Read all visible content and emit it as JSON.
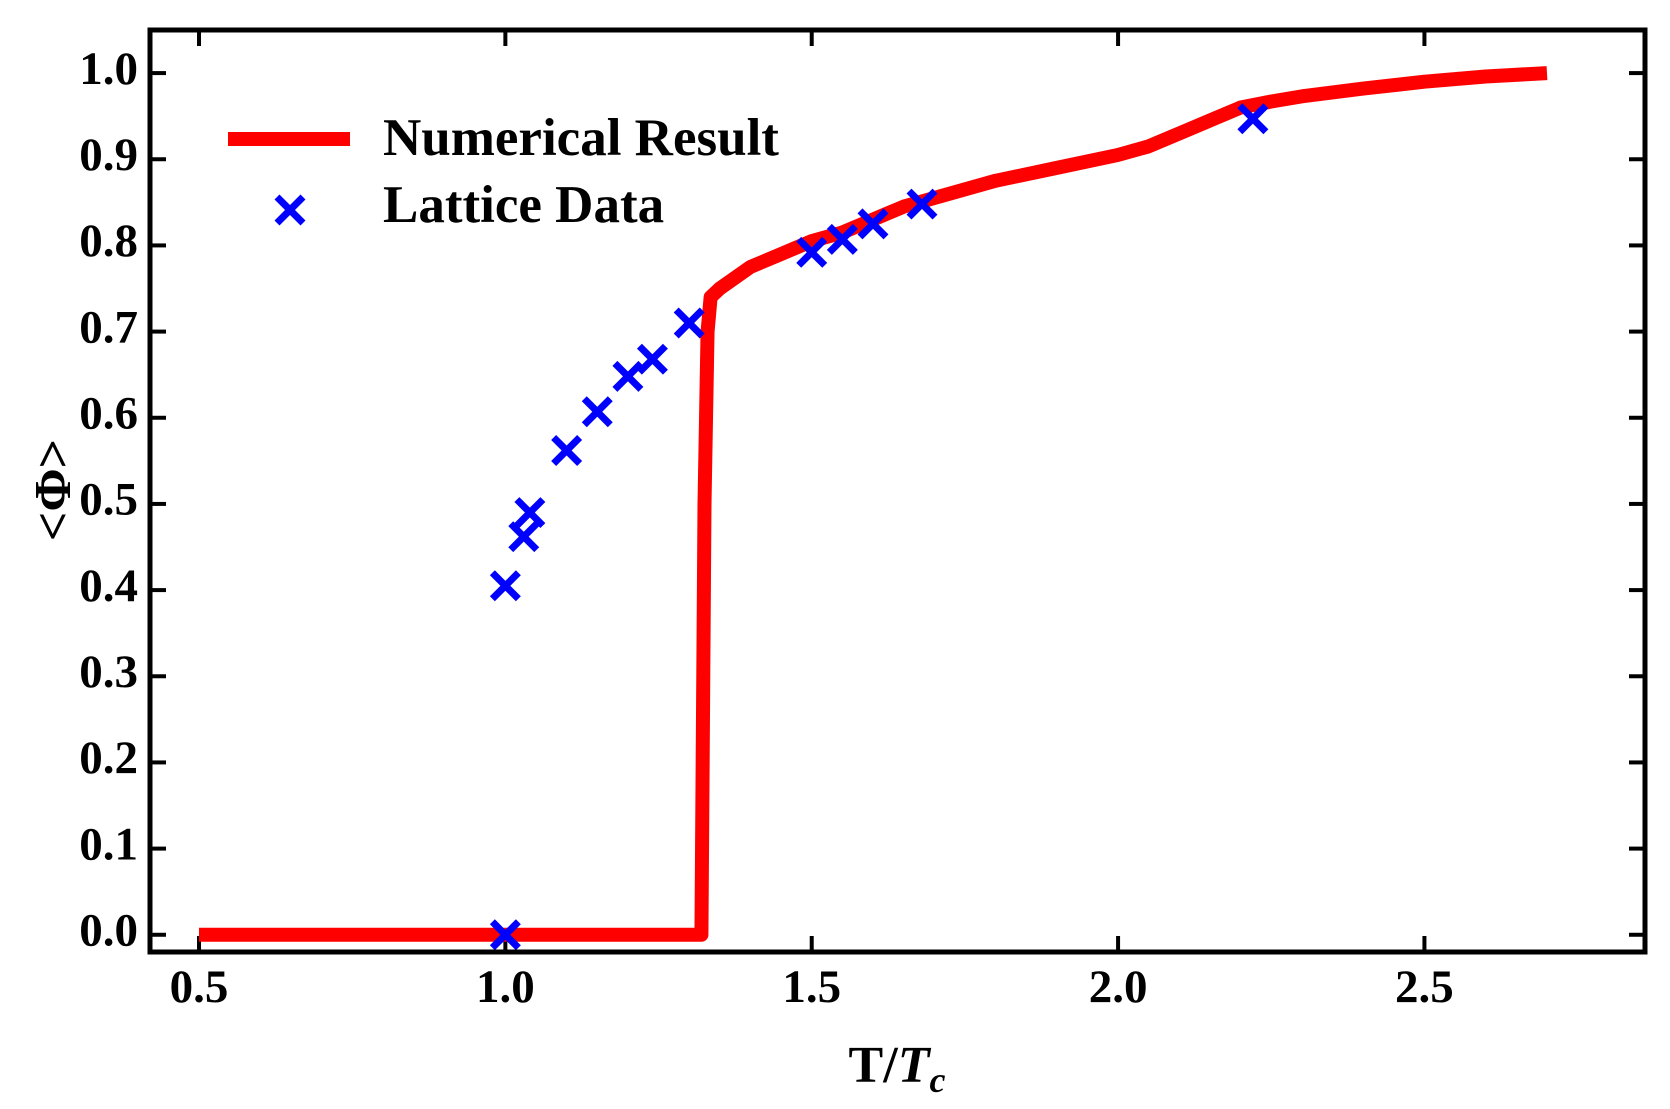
{
  "chart_data": {
    "type": "line",
    "title": "",
    "xlabel": "T/",
    "xlabel_var": "T",
    "xlabel_sub": "c",
    "ylabel": "<Φ>",
    "xlim": [
      0.42,
      2.86
    ],
    "ylim": [
      -0.02,
      1.05
    ],
    "xticks": [
      0.5,
      1.0,
      1.5,
      2.0,
      2.5
    ],
    "xtick_labels": [
      "0.5",
      "1.0",
      "1.5",
      "2.0",
      "2.5"
    ],
    "yticks": [
      0.0,
      0.1,
      0.2,
      0.3,
      0.4,
      0.5,
      0.6,
      0.7,
      0.8,
      0.9,
      1.0
    ],
    "ytick_labels": [
      "0.0",
      "0.1",
      "0.2",
      "0.3",
      "0.4",
      "0.5",
      "0.6",
      "0.7",
      "0.8",
      "0.9",
      "1.0"
    ],
    "legend_position": "top-left",
    "series": [
      {
        "name": "Numerical Result",
        "kind": "line",
        "color": "#ff0000",
        "x": [
          0.5,
          1.32,
          1.325,
          1.33,
          1.335,
          1.35,
          1.4,
          1.45,
          1.5,
          1.55,
          1.6,
          1.65,
          1.7,
          1.8,
          1.9,
          2.0,
          2.05,
          2.1,
          2.15,
          2.2,
          2.25,
          2.3,
          2.4,
          2.5,
          2.6,
          2.7
        ],
        "y": [
          0.0,
          0.0,
          0.5,
          0.7,
          0.74,
          0.75,
          0.775,
          0.79,
          0.805,
          0.815,
          0.83,
          0.845,
          0.855,
          0.875,
          0.89,
          0.905,
          0.915,
          0.93,
          0.945,
          0.96,
          0.967,
          0.973,
          0.982,
          0.99,
          0.996,
          1.0
        ]
      },
      {
        "name": "Lattice Data",
        "kind": "scatter",
        "color": "#0000ff",
        "x": [
          1.0,
          1.0,
          1.03,
          1.04,
          1.1,
          1.15,
          1.2,
          1.24,
          1.3,
          1.5,
          1.55,
          1.6,
          1.68,
          2.22
        ],
        "y": [
          0.0,
          0.405,
          0.462,
          0.49,
          0.562,
          0.607,
          0.648,
          0.668,
          0.71,
          0.792,
          0.807,
          0.825,
          0.848,
          0.947
        ]
      }
    ]
  }
}
